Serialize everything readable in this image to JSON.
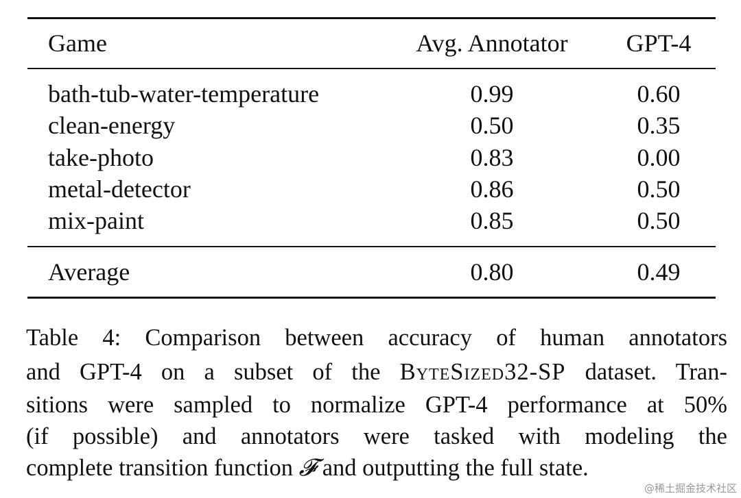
{
  "table": {
    "header": [
      "Game",
      "Avg. Annotator",
      "GPT-4"
    ],
    "rows": [
      [
        "bath-tub-water-temperature",
        "0.99",
        "0.60"
      ],
      [
        "clean-energy",
        "0.50",
        "0.35"
      ],
      [
        "take-photo",
        "0.83",
        "0.00"
      ],
      [
        "metal-detector",
        "0.86",
        "0.50"
      ],
      [
        "mix-paint",
        "0.85",
        "0.50"
      ]
    ],
    "footer": [
      "Average",
      "0.80",
      "0.49"
    ]
  },
  "caption": [
    [
      "Table 4:",
      " Comparison between accuracy of human annotators"
    ],
    [
      "and GPT-4 on a subset of the ",
      "ByteSized32-SP",
      " dataset. Tran-"
    ],
    [
      "sitions were sampled to normalize GPT-4 performance at 50%"
    ],
    [
      "(if possible) and annotators were tasked with modeling the"
    ],
    [
      "complete transition function ",
      "𝓕",
      " and outputting the full state."
    ]
  ],
  "watermark": "@稀土掘金技术社区"
}
